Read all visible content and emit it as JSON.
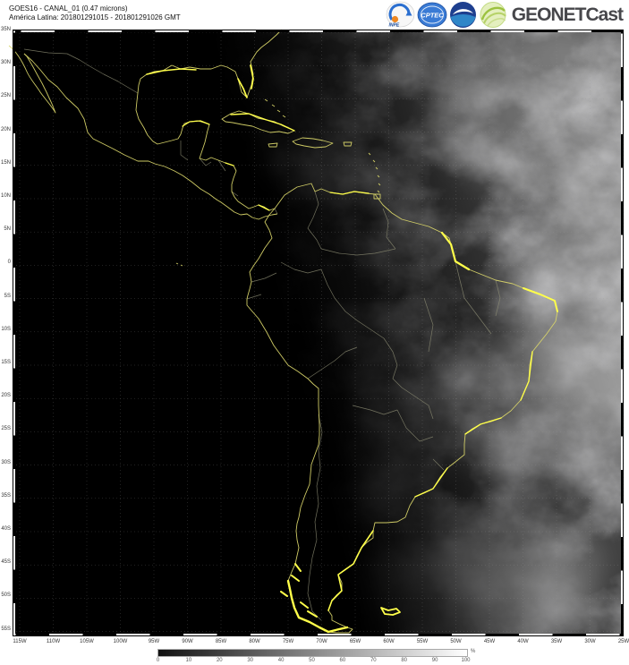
{
  "header": {
    "title_line1": "GOES16 - CANAL_01 (0.47 microns)",
    "title_line2": "América Latina: 201801291015 - 201801291026 GMT",
    "brand": "GEONETCast",
    "logos": {
      "inpe_label": "INPE",
      "cptec_label": "CPTEC"
    }
  },
  "map": {
    "alt": "GOES-16 visible channel (0.47 micron) satellite image of Latin America; night-dark western half, sunlit clouds over Brazil and the Atlantic, yellow coastlines and country borders, dotted 5-degree graticule",
    "lat_labels": [
      "35N",
      "30N",
      "25N",
      "20N",
      "15N",
      "10N",
      "5N",
      "0",
      "5S",
      "10S",
      "15S",
      "20S",
      "25S",
      "30S",
      "35S",
      "40S",
      "45S",
      "50S",
      "55S"
    ],
    "lon_labels": [
      "115W",
      "110W",
      "105W",
      "100W",
      "95W",
      "90W",
      "85W",
      "80W",
      "75W",
      "70W",
      "65W",
      "60W",
      "55W",
      "50W",
      "45W",
      "40W",
      "35W",
      "30W",
      "25W"
    ],
    "colors": {
      "coastline": "#d9d56a",
      "coastline_bright": "#ffff4a",
      "country_border": "#8d8d74",
      "night": "#000000",
      "grid": "#999999"
    }
  },
  "colorbar": {
    "ticks": [
      "0",
      "10",
      "20",
      "30",
      "40",
      "50",
      "60",
      "70",
      "80",
      "90",
      "100"
    ],
    "unit": "%",
    "min_color": "#111111",
    "max_color": "#ffffff"
  }
}
